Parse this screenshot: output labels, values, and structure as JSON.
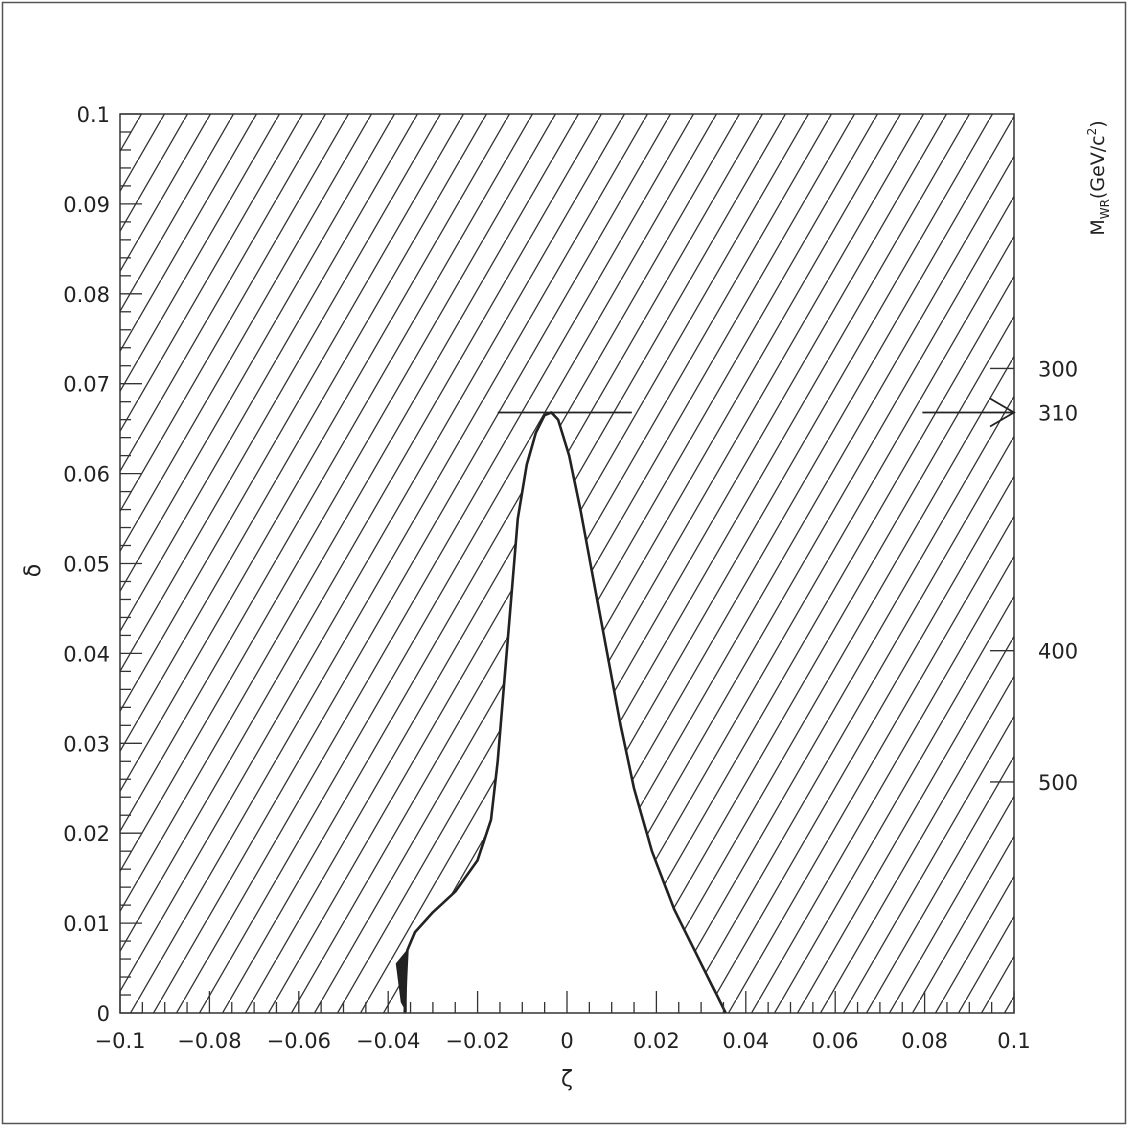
{
  "chart_data": {
    "type": "area",
    "xlabel": "ζ",
    "ylabel": "δ",
    "xlim": [
      -0.1,
      0.1
    ],
    "ylim": [
      0,
      0.1
    ],
    "x_ticks": [
      -0.1,
      -0.08,
      -0.06,
      -0.04,
      -0.02,
      0,
      0.02,
      0.04,
      0.06,
      0.08,
      0.1
    ],
    "x_tick_labels": [
      "−0.1",
      "−0.08",
      "−0.06",
      "−0.04",
      "−0.02",
      "0",
      "0.02",
      "0.04",
      "0.06",
      "0.08",
      "0.1"
    ],
    "y_ticks": [
      0,
      0.01,
      0.02,
      0.03,
      0.04,
      0.05,
      0.06,
      0.07,
      0.08,
      0.09,
      0.1
    ],
    "y_tick_labels": [
      "0",
      "0.01",
      "0.02",
      "0.03",
      "0.04",
      "0.05",
      "0.06",
      "0.07",
      "0.08",
      "0.09",
      "0.1"
    ],
    "y_label_position": 0.05,
    "right_axis": {
      "title_main": "M",
      "title_sub": "WR",
      "title_rest": "(GeV/c",
      "title_sup": "2",
      "title_close": ")",
      "ticks": [
        {
          "label": "300",
          "delta": 0.0717
        },
        {
          "label": "310",
          "delta": 0.0668
        },
        {
          "label": "400",
          "delta": 0.0403
        },
        {
          "label": "500",
          "delta": 0.0257
        }
      ]
    },
    "hatched": "excluded region (outside allowed contour)",
    "allowed_contour": {
      "left_edge": [
        [
          -0.0363,
          0
        ],
        [
          -0.036,
          0.004
        ],
        [
          -0.0357,
          0.007
        ],
        [
          -0.034,
          0.009
        ],
        [
          -0.03,
          0.0112
        ],
        [
          -0.025,
          0.0135
        ],
        [
          -0.02,
          0.017
        ],
        [
          -0.017,
          0.0215
        ],
        [
          -0.0155,
          0.028
        ],
        [
          -0.014,
          0.037
        ],
        [
          -0.0125,
          0.046
        ],
        [
          -0.011,
          0.055
        ],
        [
          -0.009,
          0.061
        ],
        [
          -0.007,
          0.0645
        ],
        [
          -0.005,
          0.0665
        ],
        [
          -0.0035,
          0.0668
        ]
      ],
      "right_edge": [
        [
          -0.0035,
          0.0668
        ],
        [
          -0.002,
          0.066
        ],
        [
          0.0005,
          0.062
        ],
        [
          0.003,
          0.056
        ],
        [
          0.006,
          0.048
        ],
        [
          0.009,
          0.04
        ],
        [
          0.012,
          0.032
        ],
        [
          0.015,
          0.025
        ],
        [
          0.019,
          0.018
        ],
        [
          0.024,
          0.0115
        ],
        [
          0.029,
          0.0065
        ],
        [
          0.033,
          0.0025
        ],
        [
          0.0355,
          0
        ]
      ],
      "peak": [
        -0.0035,
        0.0668
      ]
    },
    "horizontal_line": {
      "delta": 0.0668,
      "x_from": -0.0155,
      "x_to": 0.0145
    },
    "arrow": {
      "delta": 0.0668,
      "x_from": 0.0795,
      "x_to": 0.1
    }
  }
}
